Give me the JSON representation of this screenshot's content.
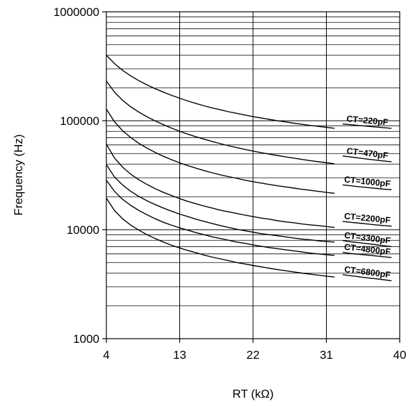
{
  "chart_data": {
    "type": "line",
    "title": "",
    "xlabel": "RT (kΩ)",
    "ylabel": "Frequency (Hz)",
    "x_scale": "linear",
    "y_scale": "log",
    "xlim": [
      4,
      40
    ],
    "ylim": [
      1000,
      1000000
    ],
    "x_ticks": [
      4,
      13,
      22,
      31,
      40
    ],
    "x_tick_labels": [
      "4",
      "13",
      "22",
      "31",
      "40"
    ],
    "y_ticks": [
      1000,
      10000,
      100000,
      1000000
    ],
    "y_tick_labels": [
      "1000",
      "10000",
      "100000",
      "1000000"
    ],
    "grid": true,
    "x": [
      4,
      5,
      6,
      7,
      8,
      9,
      10,
      11,
      12,
      13,
      14,
      15,
      16,
      17,
      18,
      19,
      20,
      21,
      22,
      23,
      24,
      25,
      26,
      27,
      28,
      29,
      30,
      31,
      32,
      33,
      34,
      35,
      36,
      37,
      38,
      39
    ],
    "series": [
      {
        "name": "CT=220pF",
        "values": [
          400000,
          335000,
          290000,
          258000,
          233000,
          213000,
          197000,
          183000,
          171000,
          161000,
          152000,
          144000,
          137000,
          131000,
          126000,
          121000,
          117000,
          113000,
          109000,
          106000,
          103000,
          100000,
          97500,
          95000,
          92800,
          90700,
          88800,
          87000,
          85300,
          93500,
          92000,
          90500,
          89100,
          87800,
          86500,
          85200
        ]
      },
      {
        "name": "CT=470pF",
        "values": [
          232000,
          183000,
          154000,
          134000,
          120000,
          108500,
          99500,
          92000,
          85600,
          80100,
          75400,
          71300,
          67700,
          64500,
          61600,
          59000,
          56700,
          54600,
          52700,
          51000,
          49400,
          48000,
          46600,
          45400,
          44200,
          43100,
          42100,
          41200,
          40300,
          47500,
          46500,
          45500,
          44500,
          43600,
          42800,
          42000
        ]
      },
      {
        "name": "CT=1000pF",
        "values": [
          128000,
          98000,
          81000,
          70000,
          62000,
          56000,
          51200,
          47200,
          43900,
          41100,
          38700,
          36700,
          34900,
          33300,
          31900,
          30700,
          29600,
          28500,
          27600,
          26800,
          26000,
          25300,
          24700,
          24100,
          23500,
          23000,
          22500,
          22000,
          21600,
          25800,
          25300,
          24800,
          24400,
          24000,
          23600,
          23300
        ]
      },
      {
        "name": "CT=2200pF",
        "values": [
          61000,
          45500,
          37500,
          32300,
          28700,
          26000,
          23800,
          22000,
          20600,
          19300,
          18200,
          17300,
          16500,
          15800,
          15100,
          14600,
          14100,
          13600,
          13200,
          12800,
          12500,
          12100,
          11800,
          11600,
          11300,
          11100,
          10900,
          10700,
          10500,
          11900,
          11700,
          11500,
          11300,
          11100,
          10900,
          10800
        ]
      },
      {
        "name": "CT=3300pF",
        "values": [
          39500,
          30500,
          25700,
          22500,
          20200,
          18400,
          17000,
          15800,
          14800,
          13900,
          13200,
          12500,
          11900,
          11400,
          10900,
          10500,
          10100,
          9800,
          9500,
          9200,
          9000,
          8800,
          8600,
          8400,
          8200,
          8100,
          7900,
          7800,
          7700,
          7950,
          7750,
          7600,
          7450,
          7300,
          7150,
          7000
        ]
      },
      {
        "name": "CT=4800pF",
        "values": [
          28500,
          22500,
          19000,
          16700,
          15000,
          13700,
          12600,
          11700,
          11000,
          10400,
          9900,
          9400,
          9000,
          8600,
          8300,
          8000,
          7700,
          7500,
          7250,
          7050,
          6850,
          6700,
          6550,
          6400,
          6250,
          6100,
          6000,
          5900,
          5800,
          6200,
          6050,
          5950,
          5850,
          5750,
          5650,
          5550
        ]
      },
      {
        "name": "CT=6800pF",
        "values": [
          19500,
          15000,
          12600,
          11000,
          9900,
          9000,
          8300,
          7700,
          7200,
          6800,
          6450,
          6150,
          5850,
          5600,
          5400,
          5200,
          5000,
          4850,
          4700,
          4560,
          4430,
          4310,
          4200,
          4100,
          4000,
          3910,
          3830,
          3750,
          3680,
          3870,
          3780,
          3700,
          3620,
          3550,
          3480,
          3400
        ]
      }
    ]
  }
}
